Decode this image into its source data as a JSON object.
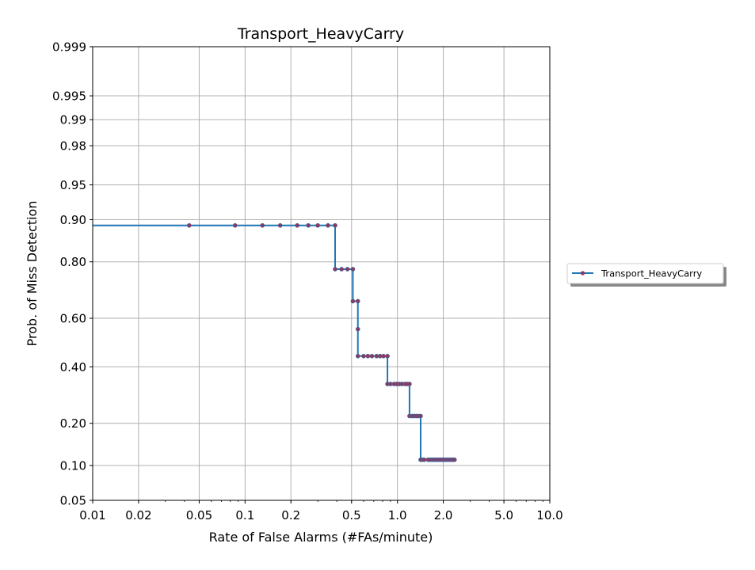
{
  "chart_data": {
    "type": "line",
    "title": "Transport_HeavyCarry",
    "xlabel": "Rate of False Alarms (#FAs/minute)",
    "ylabel": "Prob. of Miss Detection",
    "x_scale": "log",
    "y_scale": "normal-probability",
    "xlim": [
      0.01,
      10.0
    ],
    "ylim": [
      0.05,
      0.999
    ],
    "x_ticks": [
      0.01,
      0.02,
      0.05,
      0.1,
      0.2,
      0.5,
      1.0,
      2.0,
      5.0,
      10.0
    ],
    "x_tick_labels": [
      "0.01",
      "0.02",
      "0.05",
      "0.1",
      "0.2",
      "0.5",
      "1.0",
      "2.0",
      "5.0",
      "10.0"
    ],
    "y_ticks": [
      0.05,
      0.1,
      0.2,
      0.4,
      0.6,
      0.8,
      0.9,
      0.95,
      0.98,
      0.99,
      0.995,
      0.999
    ],
    "y_tick_labels": [
      "0.05",
      "0.10",
      "0.20",
      "0.40",
      "0.60",
      "0.80",
      "0.90",
      "0.95",
      "0.98",
      "0.99",
      "0.995",
      "0.999"
    ],
    "grid": true,
    "legend_position": "right",
    "series": [
      {
        "name": "Transport_HeavyCarry",
        "color": "#1f77b4",
        "marker_color": "#8b3a62",
        "step_line_from_x": 0.01,
        "points": [
          [
            0.043,
            0.889
          ],
          [
            0.086,
            0.889
          ],
          [
            0.13,
            0.889
          ],
          [
            0.17,
            0.889
          ],
          [
            0.22,
            0.889
          ],
          [
            0.26,
            0.889
          ],
          [
            0.3,
            0.889
          ],
          [
            0.35,
            0.889
          ],
          [
            0.39,
            0.889
          ],
          [
            0.39,
            0.778
          ],
          [
            0.43,
            0.778
          ],
          [
            0.47,
            0.778
          ],
          [
            0.51,
            0.778
          ],
          [
            0.51,
            0.667
          ],
          [
            0.55,
            0.667
          ],
          [
            0.55,
            0.556
          ],
          [
            0.55,
            0.444
          ],
          [
            0.6,
            0.444
          ],
          [
            0.64,
            0.444
          ],
          [
            0.68,
            0.444
          ],
          [
            0.73,
            0.444
          ],
          [
            0.77,
            0.444
          ],
          [
            0.81,
            0.444
          ],
          [
            0.86,
            0.444
          ],
          [
            0.86,
            0.333
          ],
          [
            0.9,
            0.333
          ],
          [
            0.95,
            0.333
          ],
          [
            0.99,
            0.333
          ],
          [
            1.03,
            0.333
          ],
          [
            1.07,
            0.333
          ],
          [
            1.12,
            0.333
          ],
          [
            1.16,
            0.333
          ],
          [
            1.2,
            0.333
          ],
          [
            1.2,
            0.222
          ],
          [
            1.25,
            0.222
          ],
          [
            1.29,
            0.222
          ],
          [
            1.33,
            0.222
          ],
          [
            1.38,
            0.222
          ],
          [
            1.42,
            0.222
          ],
          [
            1.42,
            0.111
          ],
          [
            1.46,
            0.111
          ],
          [
            1.5,
            0.111
          ],
          [
            1.59,
            0.111
          ],
          [
            1.63,
            0.111
          ],
          [
            1.68,
            0.111
          ],
          [
            1.72,
            0.111
          ],
          [
            1.76,
            0.111
          ],
          [
            1.8,
            0.111
          ],
          [
            1.85,
            0.111
          ],
          [
            1.89,
            0.111
          ],
          [
            1.93,
            0.111
          ],
          [
            1.98,
            0.111
          ],
          [
            2.02,
            0.111
          ],
          [
            2.06,
            0.111
          ],
          [
            2.11,
            0.111
          ],
          [
            2.15,
            0.111
          ],
          [
            2.19,
            0.111
          ],
          [
            2.24,
            0.111
          ],
          [
            2.28,
            0.111
          ],
          [
            2.32,
            0.111
          ],
          [
            2.37,
            0.111
          ]
        ]
      }
    ]
  }
}
